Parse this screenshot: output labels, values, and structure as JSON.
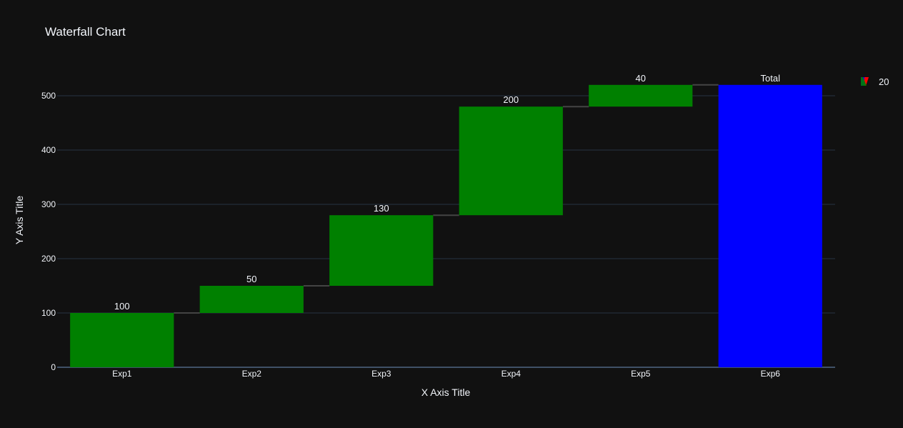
{
  "chart_data": {
    "type": "waterfall",
    "title": "Waterfall Chart",
    "xlabel": "X Axis Title",
    "ylabel": "Y Axis Title",
    "categories": [
      "Exp1",
      "Exp2",
      "Exp3",
      "Exp4",
      "Exp5",
      "Exp6"
    ],
    "measures": [
      "relative",
      "relative",
      "relative",
      "relative",
      "relative",
      "total"
    ],
    "values": [
      100,
      50,
      130,
      200,
      40,
      520
    ],
    "text_labels": [
      "100",
      "50",
      "130",
      "200",
      "40",
      "Total"
    ],
    "ylim": [
      0,
      550
    ],
    "yticks": [
      0,
      100,
      200,
      300,
      400,
      500
    ],
    "grid": true,
    "legend": {
      "placement": "top-right",
      "entries": [
        {
          "name": "20"
        }
      ]
    },
    "colors": {
      "increasing": "#008000",
      "total": "#0000ff",
      "decreasing": "#ff0000",
      "connector": "#444444",
      "background": "#111111",
      "grid": "#283442",
      "text": "#f2f5fa"
    }
  }
}
